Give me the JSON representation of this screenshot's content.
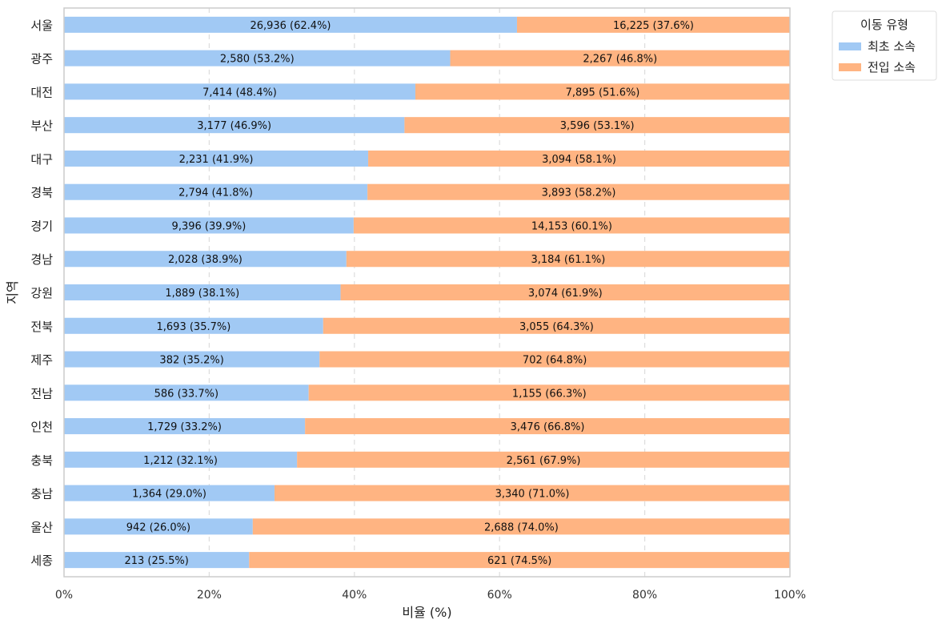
{
  "chart_data": {
    "type": "bar",
    "orientation": "horizontal",
    "stacked": true,
    "normalized": true,
    "xlabel": "비율 (%)",
    "ylabel": "지역",
    "xlim": [
      0,
      100
    ],
    "x_ticks": [
      "0%",
      "20%",
      "40%",
      "60%",
      "80%",
      "100%"
    ],
    "grid": "vertical-dashed",
    "legend": {
      "title": "이동 유형",
      "placement": "outside-top-right"
    },
    "categories": [
      "서울",
      "광주",
      "대전",
      "부산",
      "대구",
      "경북",
      "경기",
      "경남",
      "강원",
      "전북",
      "제주",
      "전남",
      "인천",
      "충북",
      "충남",
      "울산",
      "세종"
    ],
    "series": [
      {
        "name": "최초 소속",
        "color": "#a1c9f4",
        "counts": [
          26936,
          2580,
          7414,
          3177,
          2231,
          2794,
          9396,
          2028,
          1889,
          1693,
          382,
          586,
          1729,
          1212,
          1364,
          942,
          213
        ],
        "percents": [
          62.4,
          53.2,
          48.4,
          46.9,
          41.9,
          41.8,
          39.9,
          38.9,
          38.1,
          35.7,
          35.2,
          33.7,
          33.2,
          32.1,
          29.0,
          26.0,
          25.5
        ],
        "labels": [
          "26,936 (62.4%)",
          "2,580 (53.2%)",
          "7,414 (48.4%)",
          "3,177 (46.9%)",
          "2,231 (41.9%)",
          "2,794 (41.8%)",
          "9,396 (39.9%)",
          "2,028 (38.9%)",
          "1,889 (38.1%)",
          "1,693 (35.7%)",
          "382 (35.2%)",
          "586 (33.7%)",
          "1,729 (33.2%)",
          "1,212 (32.1%)",
          "1,364 (29.0%)",
          "942 (26.0%)",
          "213 (25.5%)"
        ]
      },
      {
        "name": "전입 소속",
        "color": "#ffb482",
        "counts": [
          16225,
          2267,
          7895,
          3596,
          3094,
          3893,
          14153,
          3184,
          3074,
          3055,
          702,
          1155,
          3476,
          2561,
          3340,
          2688,
          621
        ],
        "percents": [
          37.6,
          46.8,
          51.6,
          53.1,
          58.1,
          58.2,
          60.1,
          61.1,
          61.9,
          64.3,
          64.8,
          66.3,
          66.8,
          67.9,
          71.0,
          74.0,
          74.5
        ],
        "labels": [
          "16,225 (37.6%)",
          "2,267 (46.8%)",
          "7,895 (51.6%)",
          "3,596 (53.1%)",
          "3,094 (58.1%)",
          "3,893 (58.2%)",
          "14,153 (60.1%)",
          "3,184 (61.1%)",
          "3,074 (61.9%)",
          "3,055 (64.3%)",
          "702 (64.8%)",
          "1,155 (66.3%)",
          "3,476 (66.8%)",
          "2,561 (67.9%)",
          "3,340 (71.0%)",
          "2,688 (74.0%)",
          "621 (74.5%)"
        ]
      }
    ]
  }
}
